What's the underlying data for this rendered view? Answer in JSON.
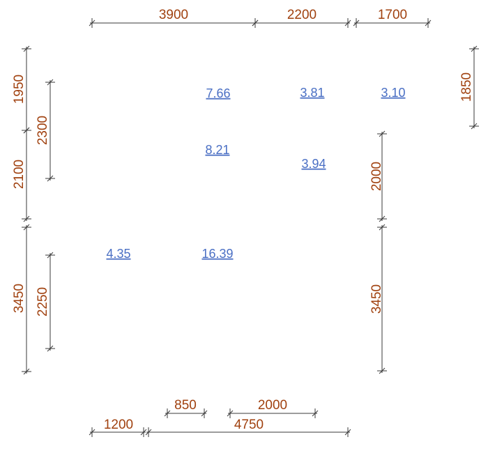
{
  "dimensions": [
    "3900",
    "2200",
    "1700",
    "1950",
    "2100",
    "3450",
    "2300",
    "2250",
    "1850",
    "2000",
    "3450",
    "850",
    "2000",
    "1200",
    "4750"
  ],
  "areas": [
    "7.66",
    "3.81",
    "3.10",
    "8.21",
    "3.94",
    "4.35",
    "16.39"
  ]
}
